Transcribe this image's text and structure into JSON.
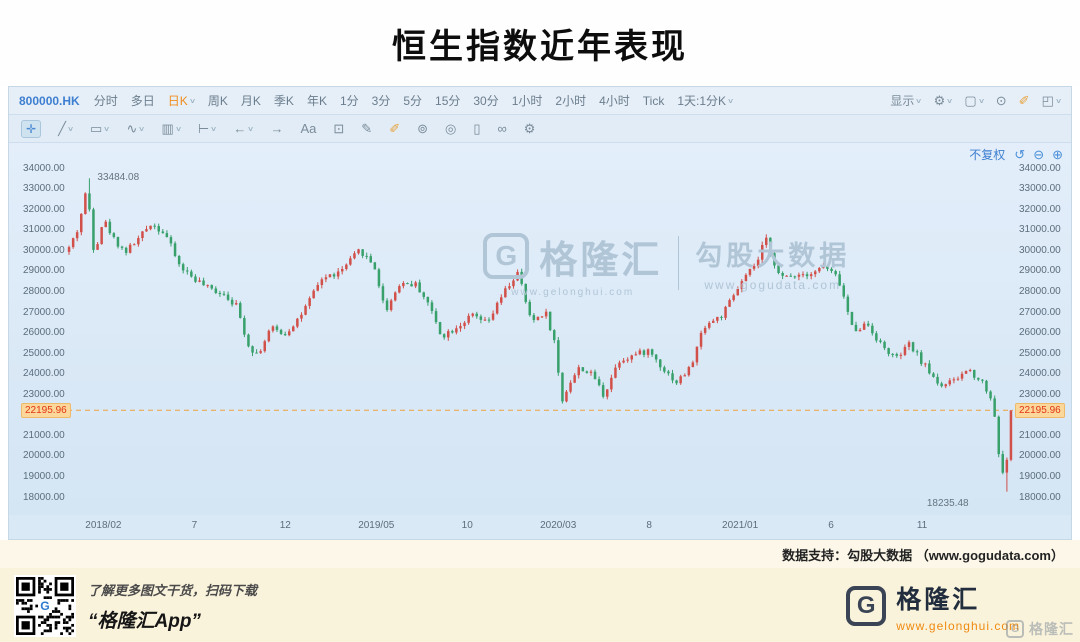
{
  "page": {
    "title": "恒生指数近年表现",
    "data_support": "数据支持：勾股大数据 （www.gogudata.com）"
  },
  "toolbar": {
    "symbol": "800000.HK",
    "timeframes": [
      {
        "label": "分时"
      },
      {
        "label": "多日"
      },
      {
        "label": "日K",
        "active": true,
        "caret": true
      },
      {
        "label": "周K"
      },
      {
        "label": "月K"
      },
      {
        "label": "季K"
      },
      {
        "label": "年K"
      },
      {
        "label": "1分"
      },
      {
        "label": "3分"
      },
      {
        "label": "5分"
      },
      {
        "label": "15分"
      },
      {
        "label": "30分"
      },
      {
        "label": "1小时"
      },
      {
        "label": "2小时"
      },
      {
        "label": "4小时"
      },
      {
        "label": "Tick"
      },
      {
        "label": "1天:1分K",
        "caret": true
      }
    ],
    "display_label": "显示",
    "right_icons": [
      {
        "name": "settings-gear-icon",
        "glyph": "⚙",
        "caret": true
      },
      {
        "name": "layout-icon",
        "glyph": "▢",
        "caret": true
      },
      {
        "name": "camera-icon",
        "glyph": "⊙"
      },
      {
        "name": "pen-icon",
        "glyph": "✐",
        "color": "#e8a23c"
      },
      {
        "name": "expand-icon",
        "glyph": "◰",
        "caret": true
      }
    ]
  },
  "draw_toolbar": {
    "tools": [
      {
        "name": "move-tool-icon",
        "glyph": "✛",
        "boxed": true
      },
      {
        "name": "trendline-tool-icon",
        "glyph": "╱",
        "caret": true
      },
      {
        "name": "shape-tool-icon",
        "glyph": "▭",
        "caret": true
      },
      {
        "name": "wave-tool-icon",
        "glyph": "∿",
        "caret": true
      },
      {
        "name": "indicator-tool-icon",
        "glyph": "▥",
        "caret": true
      },
      {
        "name": "measure-tool-icon",
        "glyph": "⊢",
        "caret": true
      },
      {
        "name": "arrow-left-icon",
        "glyph": "←",
        "caret": true
      },
      {
        "name": "arrow-right-icon",
        "glyph": "→"
      },
      {
        "name": "text-tool-icon",
        "glyph": "Aa"
      },
      {
        "name": "comment-tool-icon",
        "glyph": "⊡"
      },
      {
        "name": "pencil-tool-icon",
        "glyph": "✎"
      },
      {
        "name": "highlight-pen-icon",
        "glyph": "✐",
        "color": "#e8a23c"
      },
      {
        "name": "rings-tool-icon",
        "glyph": "⊚"
      },
      {
        "name": "target-tool-icon",
        "glyph": "◎"
      },
      {
        "name": "eraser-tool-icon",
        "glyph": "▯"
      },
      {
        "name": "link-tool-icon",
        "glyph": "∞"
      },
      {
        "name": "tool-settings-icon",
        "glyph": "⚙"
      }
    ]
  },
  "chart_header": {
    "adjust_label": "不复权",
    "icons": [
      {
        "name": "undo-icon",
        "glyph": "↺"
      },
      {
        "name": "zoom-out-icon",
        "glyph": "⊖"
      },
      {
        "name": "zoom-in-icon",
        "glyph": "⊕"
      }
    ]
  },
  "watermark": {
    "brand_initial": "G",
    "brand": "格隆汇",
    "brand_url": "www.gelonghui.com",
    "product": "勾股大数据",
    "product_url": "www.gogudata.com"
  },
  "footer": {
    "caption_line1": "了解更多图文干货，扫码下载",
    "caption_line2": "“格隆汇App”",
    "brand_initial": "G",
    "brand": "格隆汇",
    "brand_url": "www.gelonghui.com",
    "corner_brand": "格隆汇",
    "corner_initial": "G"
  },
  "chart_data": {
    "type": "candlestick",
    "symbol": "800000.HK",
    "title": "恒生指数近年表现",
    "period": "日K",
    "y_ticks": [
      34000,
      33000,
      32000,
      31000,
      30000,
      29000,
      28000,
      27000,
      26000,
      25000,
      24000,
      23000,
      22000,
      21000,
      20000,
      19000,
      18000
    ],
    "y_max": 35200,
    "y_min": 17100,
    "x_ticks": [
      {
        "label": "2018/02",
        "m": 2
      },
      {
        "label": "7",
        "m": 7
      },
      {
        "label": "12",
        "m": 12
      },
      {
        "label": "2019/05",
        "m": 17
      },
      {
        "label": "10",
        "m": 22
      },
      {
        "label": "2020/03",
        "m": 27
      },
      {
        "label": "8",
        "m": 32
      },
      {
        "label": "2021/01",
        "m": 37
      },
      {
        "label": "6",
        "m": 42
      },
      {
        "label": "11",
        "m": 47
      }
    ],
    "months_span": 52,
    "candle_count": 232,
    "seed": 42,
    "noise": 150,
    "wick": 170,
    "high_value": 33484.08,
    "high_label": "33484.08",
    "low_value": 18235.48,
    "low_label": "18235.48",
    "last_price": 22195.96,
    "last_price_label": "22195.96",
    "colors": {
      "up": "#d2504a",
      "down": "#37a06b",
      "price_line": "#eda23f"
    },
    "anchors": [
      [
        0,
        29900
      ],
      [
        0.6,
        31000
      ],
      [
        1.1,
        33050
      ],
      [
        1.5,
        29800
      ],
      [
        2.0,
        31500
      ],
      [
        2.6,
        30500
      ],
      [
        3.2,
        29900
      ],
      [
        4.0,
        30600
      ],
      [
        4.6,
        31300
      ],
      [
        5.4,
        30800
      ],
      [
        6.2,
        29200
      ],
      [
        7.0,
        28600
      ],
      [
        7.8,
        28100
      ],
      [
        8.6,
        27900
      ],
      [
        9.3,
        27300
      ],
      [
        10.0,
        25300
      ],
      [
        10.5,
        24900
      ],
      [
        11.2,
        26200
      ],
      [
        12.0,
        25900
      ],
      [
        13.0,
        27000
      ],
      [
        14.0,
        28600
      ],
      [
        15.0,
        28900
      ],
      [
        16.1,
        30000
      ],
      [
        16.9,
        29200
      ],
      [
        17.5,
        27000
      ],
      [
        18.3,
        28400
      ],
      [
        19.2,
        28300
      ],
      [
        19.8,
        27500
      ],
      [
        20.6,
        25800
      ],
      [
        21.5,
        26300
      ],
      [
        22.3,
        26800
      ],
      [
        23.1,
        26400
      ],
      [
        24.0,
        27900
      ],
      [
        24.8,
        28900
      ],
      [
        25.5,
        26500
      ],
      [
        26.3,
        27000
      ],
      [
        26.8,
        25500
      ],
      [
        27.2,
        22600
      ],
      [
        27.6,
        23500
      ],
      [
        28.2,
        24300
      ],
      [
        29.0,
        23800
      ],
      [
        29.5,
        22900
      ],
      [
        30.3,
        24600
      ],
      [
        31.2,
        24900
      ],
      [
        32.0,
        25100
      ],
      [
        32.8,
        24200
      ],
      [
        33.5,
        23550
      ],
      [
        34.3,
        24300
      ],
      [
        35.0,
        26300
      ],
      [
        36.0,
        26800
      ],
      [
        37.0,
        28300
      ],
      [
        38.0,
        29500
      ],
      [
        38.4,
        30600
      ],
      [
        39.2,
        28600
      ],
      [
        40.0,
        28800
      ],
      [
        41.0,
        28900
      ],
      [
        41.6,
        29200
      ],
      [
        42.4,
        28600
      ],
      [
        43.2,
        26100
      ],
      [
        44.0,
        26400
      ],
      [
        44.8,
        25300
      ],
      [
        45.6,
        24700
      ],
      [
        46.3,
        25400
      ],
      [
        47.2,
        24300
      ],
      [
        48.0,
        23400
      ],
      [
        48.8,
        23600
      ],
      [
        49.5,
        24200
      ],
      [
        50.3,
        23600
      ],
      [
        50.9,
        22600
      ],
      [
        51.3,
        19500
      ],
      [
        51.55,
        18700
      ],
      [
        51.8,
        21300
      ],
      [
        52.0,
        22200
      ]
    ]
  }
}
